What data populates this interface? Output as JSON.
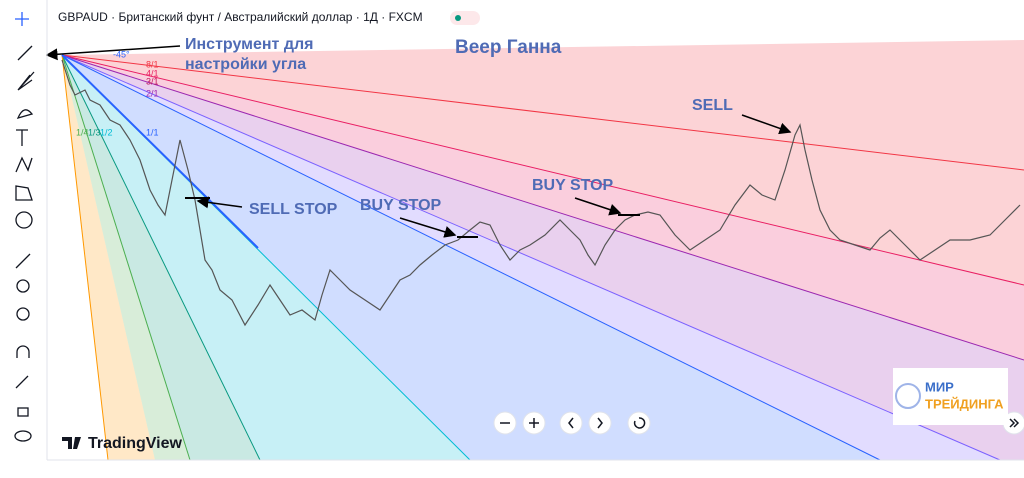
{
  "header": {
    "symbol": "GBPAUD · Британский фунт / Австралийский доллар · 1Д · FXCM"
  },
  "annotations": {
    "tool": [
      "Инструмент для",
      "настройки угла"
    ],
    "title": "Веер Ганна",
    "sell": "SELL",
    "buy_stop": [
      "BUY STOP",
      "BUY STOP"
    ],
    "sell_stop": "SELL STOP"
  },
  "fan": {
    "angle": "-45°",
    "levels": [
      "8/1",
      "4/1",
      "3/1",
      "2/1",
      "1/1",
      "1/2",
      "1/3",
      "1/4"
    ]
  },
  "logo": "TradingView",
  "watermark": [
    "МИР",
    "ТРЕЙДИНГА"
  ]
}
